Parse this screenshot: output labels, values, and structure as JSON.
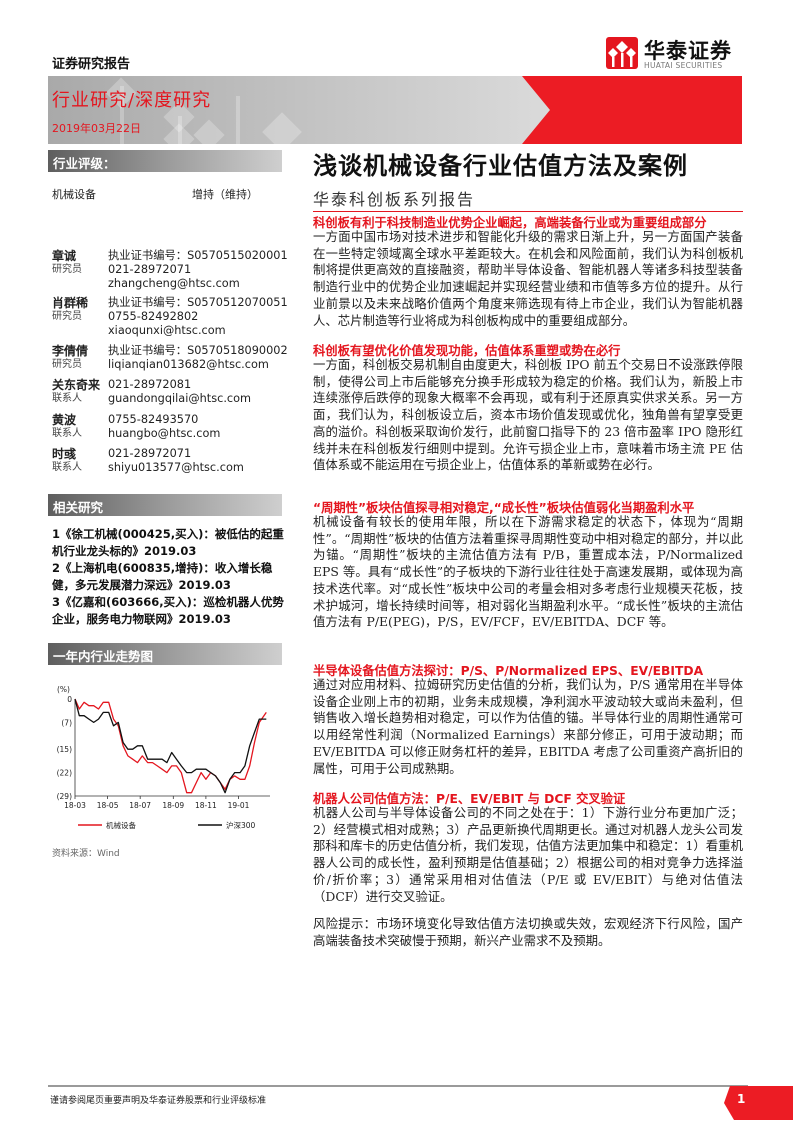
{
  "header": {
    "report_type": "证券研究报告",
    "logo_cn": "华泰证券",
    "logo_en": "HUATAI SECURITIES",
    "category": "行业研究/深度研究",
    "date": "2019年03月22日"
  },
  "sidebar": {
    "rating_title": "行业评级：",
    "industry": "机械设备",
    "rating": "增持（维持）",
    "analysts": [
      {
        "name": "章诚",
        "role": "研究员",
        "lines": [
          "执业证书编号：S0570515020001",
          "021-28972071",
          "zhangcheng@htsc.com"
        ]
      },
      {
        "name": "肖群稀",
        "role": "研究员",
        "lines": [
          "执业证书编号：S0570512070051",
          "0755-82492802",
          "xiaoqunxi@htsc.com"
        ]
      },
      {
        "name": "李倩倩",
        "role": "研究员",
        "lines": [
          "执业证书编号：S0570518090002",
          "liqianqian013682@htsc.com"
        ]
      },
      {
        "name": "关东奇来",
        "role": "联系人",
        "lines": [
          "021-28972081",
          "guandongqilai@htsc.com"
        ]
      },
      {
        "name": "黄波",
        "role": "联系人",
        "lines": [
          "0755-82493570",
          "huangbo@htsc.com"
        ]
      },
      {
        "name": "时彧",
        "role": "联系人",
        "lines": [
          "021-28972071",
          "shiyu013577@htsc.com"
        ]
      }
    ],
    "related_title": "相关研究",
    "related": [
      "1《徐工机械(000425,买入)：被低估的起重机行业龙头标的》2019.03",
      "2《上海机电(600835,增持)：收入增长稳健，多元发展潜力深远》2019.03",
      "3《亿嘉和(603666,买入)：巡检机器人优势企业，服务电力物联网》2019.03"
    ],
    "chart_title": "一年内行业走势图",
    "source": "资料来源：Wind"
  },
  "chart_data": {
    "type": "line",
    "ylabel": "(%)",
    "ylim": [
      -29,
      0
    ],
    "yticks": [
      {
        "v": 0,
        "label": "0"
      },
      {
        "v": -7,
        "label": "(7)"
      },
      {
        "v": -15,
        "label": "(15)"
      },
      {
        "v": -22,
        "label": "(22)"
      },
      {
        "v": -29,
        "label": "(29)"
      }
    ],
    "xticks": [
      {
        "d": "2018-03-22",
        "label": "18-03"
      },
      {
        "d": "2018-05-22",
        "label": "18-05"
      },
      {
        "d": "2018-07-22",
        "label": "18-07"
      },
      {
        "d": "2018-09-22",
        "label": "18-09"
      },
      {
        "d": "2018-11-22",
        "label": "18-11"
      },
      {
        "d": "2019-01-22",
        "label": "19-01"
      }
    ],
    "xlim": [
      "2018-03-22",
      "2019-03-22"
    ],
    "x": [
      "2018-03-22",
      "2018-03-30",
      "2018-04-08",
      "2018-04-17",
      "2018-04-26",
      "2018-05-05",
      "2018-05-14",
      "2018-05-24",
      "2018-06-02",
      "2018-06-11",
      "2018-06-20",
      "2018-06-29",
      "2018-07-08",
      "2018-07-17",
      "2018-07-26",
      "2018-08-05",
      "2018-08-14",
      "2018-08-23",
      "2018-09-01",
      "2018-09-10",
      "2018-09-19",
      "2018-09-28",
      "2018-10-07",
      "2018-10-17",
      "2018-10-26",
      "2018-11-04",
      "2018-11-13",
      "2018-11-22",
      "2018-12-01",
      "2018-12-10",
      "2018-12-19",
      "2018-12-28",
      "2019-01-06",
      "2019-01-15",
      "2019-01-25",
      "2019-02-03",
      "2019-02-12",
      "2019-02-21",
      "2019-03-02",
      "2019-03-15"
    ],
    "series": [
      {
        "name": "机械设备",
        "color": "#e4161f",
        "values": [
          0,
          -3,
          -1,
          -2,
          -2,
          -3,
          -1,
          -1,
          -6,
          -8,
          -14,
          -17,
          -18,
          -19,
          -17,
          -19,
          -19,
          -20,
          -21,
          -22,
          -20,
          -20,
          -22,
          -28,
          -28,
          -25,
          -22,
          -24,
          -22,
          -23,
          -25,
          -27,
          -24,
          -23,
          -24,
          -24,
          -20,
          -13,
          -7,
          -4
        ]
      },
      {
        "name": "沪深300",
        "color": "#111111",
        "values": [
          0,
          -5,
          -5,
          -6,
          -7,
          -6,
          -4,
          -4,
          -8,
          -7,
          -13,
          -15,
          -15,
          -14,
          -14,
          -18,
          -18,
          -18,
          -18,
          -19,
          -16,
          -18,
          -20,
          -22,
          -22,
          -21,
          -21,
          -21,
          -22,
          -23,
          -25,
          -28,
          -24,
          -22,
          -22,
          -20,
          -14,
          -10,
          -6,
          -6
        ]
      }
    ]
  },
  "main": {
    "title": "浅谈机械设备行业估值方法及案例",
    "subtitle": "华泰科创板系列报告",
    "sections": [
      {
        "heading": "科创板有利于科技制造业优势企业崛起，高端装备行业或为重要组成部分",
        "body": "一方面中国市场对技术进步和智能化升级的需求日渐上升，另一方面国产装备在一些特定领域离全球水平差距较大。在机会和风险面前，我们认为科创板机制将提供更高效的直接融资，帮助半导体设备、智能机器人等诸多科技型装备制造行业中的优势企业加速崛起并实现经营业绩和市值等多方位的提升。从行业前景以及未来战略价值两个角度来筛选现有待上市企业，我们认为智能机器人、芯片制造等行业将成为科创板构成中的重要组成部分。"
      },
      {
        "heading": "科创板有望优化价值发现功能，估值体系重塑或势在必行",
        "body": "一方面，科创板交易机制自由度更大，科创板 IPO 前五个交易日不设涨跌停限制，使得公司上市后能够充分换手形成较为稳定的价格。我们认为，新股上市连续涨停后跌停的现象大概率不会再现，或有利于还原真实供求关系。另一方面，我们认为，科创板设立后，资本市场价值发现或优化，独角兽有望享受更高的溢价。科创板采取询价发行，此前窗口指导下的 23 倍市盈率 IPO 隐形红线并未在科创板发行细则中提到。允许亏损企业上市，意味着市场主流 PE 估值体系或不能运用在亏损企业上，估值体系的革新或势在必行。"
      },
      {
        "heading": "“周期性”板块估值探寻相对稳定,“成长性”板块估值弱化当期盈利水平",
        "body": "机械设备有较长的使用年限，所以在下游需求稳定的状态下，体现为“周期性”。“周期性”板块的估值方法着重探寻周期性变动中相对稳定的部分，并以此为锚。“周期性”板块的主流估值方法有 P/B，重置成本法，P/Normalized EPS 等。具有“成长性”的子板块的下游行业往往处于高速发展期，或体现为高技术迭代率。对“成长性”板块中公司的考量会相对多考虑行业规模天花板，技术护城河，增长持续时间等，相对弱化当期盈利水平。“成长性”板块的主流估值方法有 P/E(PEG)，P/S，EV/FCF，EV/EBITDA、DCF 等。"
      },
      {
        "heading": "半导体设备估值方法探讨：P/S、P/Normalized EPS、EV/EBITDA",
        "body": "通过对应用材料、拉姆研究历史估值的分析，我们认为，P/S 通常用在半导体设备企业刚上市的初期，业务未成规模，净利润水平波动较大或尚未盈利，但销售收入增长趋势相对稳定，可以作为估值的锚。半导体行业的周期性通常可以用经常性利润（Normalized Earnings）来部分修正，可用于波动期；而 EV/EBITDA 可以修正财务杠杆的差异，EBITDA 考虑了公司重资产高折旧的属性，可用于公司成熟期。"
      },
      {
        "heading": "机器人公司估值方法：P/E、EV/EBIT 与 DCF 交叉验证",
        "body": "机器人公司与半导体设备公司的不同之处在于：1）下游行业分布更加广泛；2）经营模式相对成熟；3）产品更新换代周期更长。通过对机器人龙头公司发那科和库卡的历史估值分析，我们发现，估值方法更加集中和稳定：1）看重机器人公司的成长性，盈利预期是估值基础；2）根据公司的相对竞争力选择溢价/折价率；3）通常采用相对估值法（P/E 或 EV/EBIT）与绝对估值法（DCF）进行交叉验证。"
      }
    ],
    "risk": "风险提示：市场环境变化导致估值方法切换或失效，宏观经济下行风险，国产高端装备技术突破慢于预期，新兴产业需求不及预期。"
  },
  "footer": {
    "disclaimer": "谨请参阅尾页重要声明及华泰证券股票和行业评级标准",
    "page": "1"
  }
}
